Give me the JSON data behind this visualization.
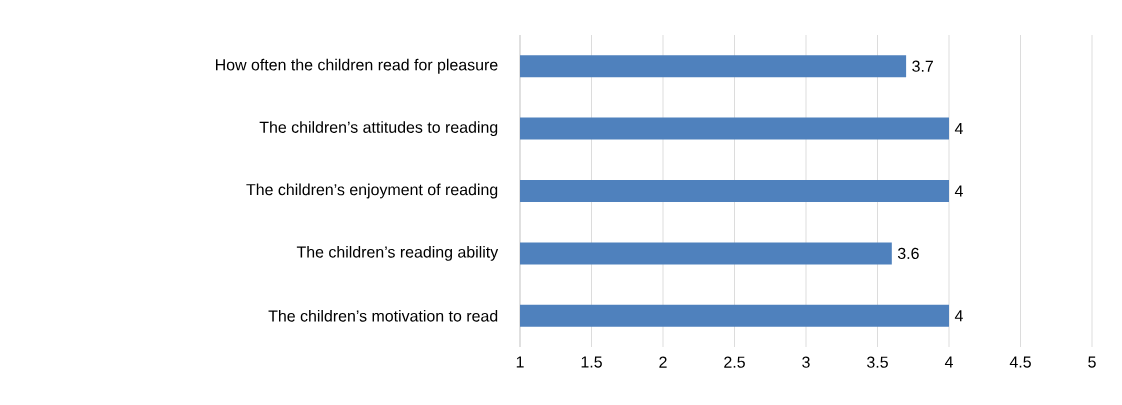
{
  "chart_data": {
    "type": "bar",
    "orientation": "horizontal",
    "categories": [
      "How often the children read for pleasure",
      "The children’s attitudes to reading",
      "The children’s enjoyment of reading",
      "The children’s reading ability",
      "The children’s motivation to read"
    ],
    "values": [
      3.7,
      4,
      4,
      3.6,
      4
    ],
    "color": "#4f81bd",
    "xlim": [
      1,
      5
    ],
    "xticks": [
      1,
      1.5,
      2,
      2.5,
      3,
      3.5,
      4,
      4.5,
      5
    ],
    "grid": "x",
    "data_labels": true
  }
}
